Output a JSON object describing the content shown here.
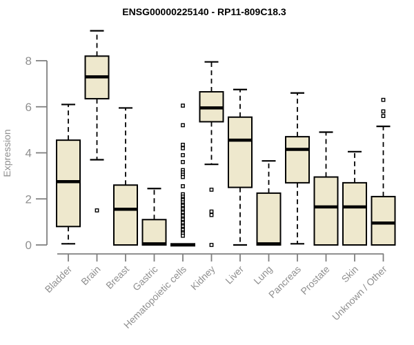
{
  "page": {
    "background": "#ffffff"
  },
  "chart_data": {
    "type": "boxplot",
    "title": "ENSG00000225140 - RP11-809C18.3",
    "xlabel": "",
    "ylabel": "Expression",
    "yticks": [
      0,
      2,
      4,
      6,
      8
    ],
    "ylim": [
      0,
      9.4
    ],
    "grid": false,
    "legend": null,
    "categories": [
      "Bladder",
      "Brain",
      "Breast",
      "Gastric",
      "Hematopoietic cells",
      "Kidney",
      "Liver",
      "Lung",
      "Pancreas",
      "Prostate",
      "Skin",
      "Unknown / Other"
    ],
    "series": [
      {
        "category": "Bladder",
        "whisker_low": 0.05,
        "q1": 0.8,
        "median": 2.75,
        "q3": 4.55,
        "whisker_high": 6.1,
        "outliers": []
      },
      {
        "category": "Brain",
        "whisker_low": 3.7,
        "q1": 6.35,
        "median": 7.3,
        "q3": 8.2,
        "whisker_high": 9.3,
        "outliers": [
          1.5
        ]
      },
      {
        "category": "Breast",
        "whisker_low": 0.0,
        "q1": 0.0,
        "median": 1.55,
        "q3": 2.6,
        "whisker_high": 5.95,
        "outliers": []
      },
      {
        "category": "Gastric",
        "whisker_low": 0.0,
        "q1": 0.0,
        "median": 0.05,
        "q3": 1.1,
        "whisker_high": 2.45,
        "outliers": []
      },
      {
        "category": "Hematopoietic cells",
        "whisker_low": 0.0,
        "q1": 0.0,
        "median": 0.0,
        "q3": 0.05,
        "whisker_high": 0.05,
        "outliers": [
          6.05,
          5.2,
          4.35,
          4.2,
          3.9,
          3.6,
          3.25,
          3.15,
          3.05,
          2.95,
          2.55,
          2.2,
          2.1,
          2.0,
          1.95,
          1.85,
          1.75,
          1.7,
          1.6,
          1.55,
          1.45,
          1.4,
          1.3,
          1.25,
          1.15,
          1.1,
          1.0,
          0.95,
          0.85,
          0.8,
          0.7,
          0.65,
          0.55,
          0.5,
          0.4
        ]
      },
      {
        "category": "Kidney",
        "whisker_low": 3.5,
        "q1": 5.35,
        "median": 5.95,
        "q3": 6.65,
        "whisker_high": 7.95,
        "outliers": [
          2.4,
          1.45,
          1.3,
          0.0
        ]
      },
      {
        "category": "Liver",
        "whisker_low": 0.0,
        "q1": 2.5,
        "median": 4.55,
        "q3": 5.55,
        "whisker_high": 6.75,
        "outliers": []
      },
      {
        "category": "Lung",
        "whisker_low": 0.0,
        "q1": 0.0,
        "median": 0.05,
        "q3": 2.25,
        "whisker_high": 3.65,
        "outliers": []
      },
      {
        "category": "Pancreas",
        "whisker_low": 0.05,
        "q1": 2.7,
        "median": 4.15,
        "q3": 4.7,
        "whisker_high": 6.6,
        "outliers": []
      },
      {
        "category": "Prostate",
        "whisker_low": 0.0,
        "q1": 0.0,
        "median": 1.65,
        "q3": 2.95,
        "whisker_high": 4.9,
        "outliers": []
      },
      {
        "category": "Skin",
        "whisker_low": 0.0,
        "q1": 0.0,
        "median": 1.65,
        "q3": 2.7,
        "whisker_high": 4.05,
        "outliers": []
      },
      {
        "category": "Unknown / Other",
        "whisker_low": 0.0,
        "q1": 0.0,
        "median": 0.95,
        "q3": 2.1,
        "whisker_high": 5.15,
        "outliers": [
          6.3,
          5.8,
          5.6
        ]
      }
    ],
    "colors": {
      "box_fill": "#EEE8CD",
      "box_border": "#000000",
      "median": "#000000",
      "whisker": "#000000",
      "outlier_fill": "#ffffff",
      "axis": "#7f7f7f",
      "tick_text": "#8f8f8f",
      "title_text": "#000000"
    }
  }
}
